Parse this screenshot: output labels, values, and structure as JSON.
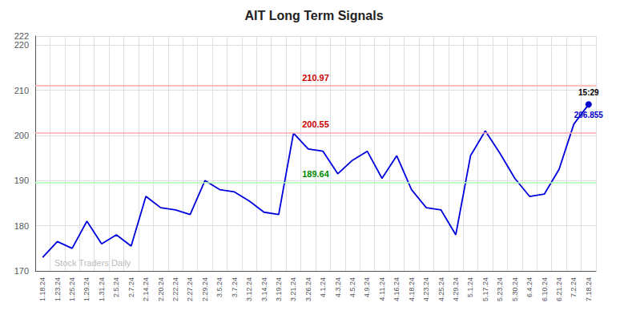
{
  "chart_data": {
    "type": "line",
    "title": "AIT Long Term Signals",
    "watermark": "Stock Traders Daily",
    "categories": [
      "1.18.24",
      "1.23.24",
      "1.25.24",
      "1.29.24",
      "1.31.24",
      "2.5.24",
      "2.7.24",
      "2.14.24",
      "2.20.24",
      "2.22.24",
      "2.27.24",
      "2.29.24",
      "3.5.24",
      "3.7.24",
      "3.12.24",
      "3.14.24",
      "3.19.24",
      "3.21.24",
      "3.26.24",
      "4.1.24",
      "4.3.24",
      "4.5.24",
      "4.9.24",
      "4.11.24",
      "4.16.24",
      "4.18.24",
      "4.23.24",
      "4.25.24",
      "4.29.24",
      "5.1.24",
      "5.17.24",
      "5.23.24",
      "5.30.24",
      "6.4.24",
      "6.10.24",
      "6.21.24",
      "7.2.24",
      "7.18.24"
    ],
    "values": [
      173.0,
      176.5,
      175.0,
      181.0,
      176.0,
      178.0,
      175.5,
      186.5,
      184.0,
      183.5,
      182.5,
      190.0,
      188.0,
      187.5,
      185.5,
      183.0,
      182.5,
      200.5,
      197.0,
      196.5,
      191.5,
      194.5,
      196.5,
      190.5,
      195.5,
      188.0,
      184.0,
      183.5,
      178.0,
      195.5,
      201.0,
      196.0,
      190.5,
      186.5,
      187.0,
      192.5,
      202.5,
      206.855
    ],
    "color": "#0000dd",
    "last_point_label": "15:29",
    "last_point_color": "#0000cc",
    "reference_lines": [
      {
        "value": 210.97,
        "label": "210.97",
        "color": "#ffaaaa",
        "label_color": "#cc0000"
      },
      {
        "value": 200.55,
        "label": "200.55",
        "color": "#ffaaaa",
        "label_color": "#cc0000"
      },
      {
        "value": 189.64,
        "label": "189.64",
        "color": "#aaffaa",
        "label_color": "#008800"
      }
    ],
    "ylim": [
      170,
      222
    ],
    "yticks": [
      170,
      180,
      190,
      200,
      210,
      220
    ],
    "grid": true
  }
}
